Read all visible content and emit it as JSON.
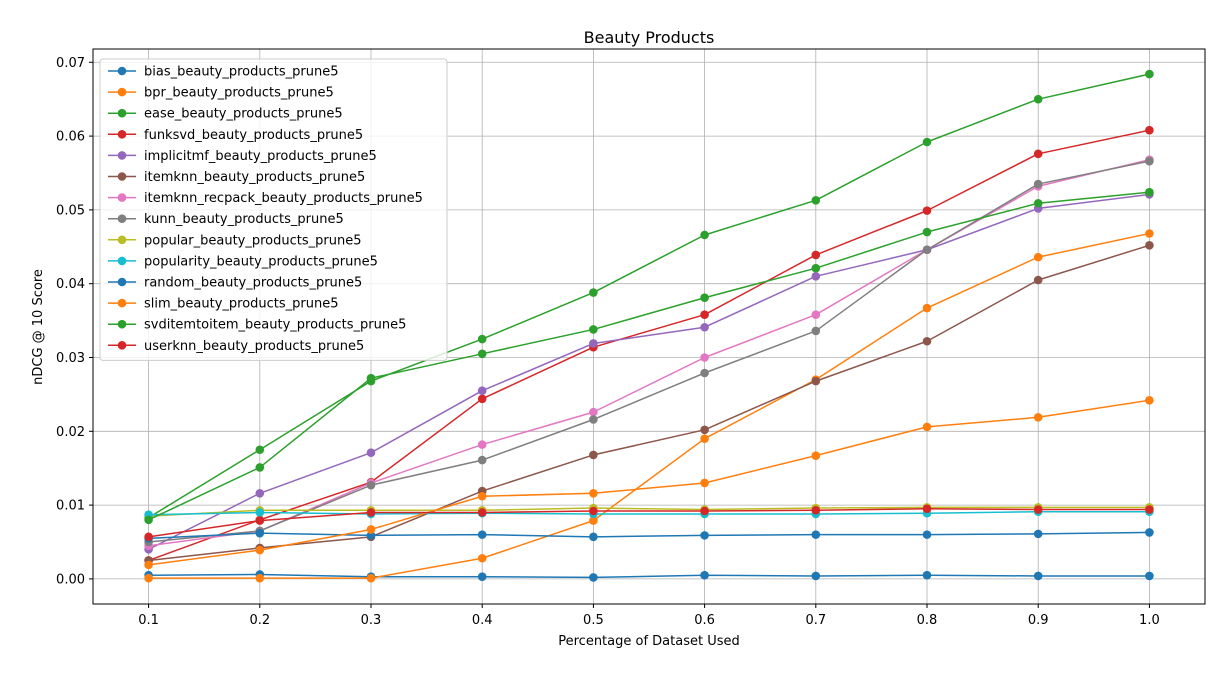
{
  "chart_data": {
    "type": "line",
    "title": "Beauty Products",
    "xlabel": "Percentage of Dataset Used",
    "ylabel": "nDCG @ 10 Score",
    "x": [
      0.1,
      0.2,
      0.3,
      0.4,
      0.5,
      0.6,
      0.7,
      0.8,
      0.9,
      1.0
    ],
    "xticks": [
      "0.1",
      "0.2",
      "0.3",
      "0.4",
      "0.5",
      "0.6",
      "0.7",
      "0.8",
      "0.9",
      "1.0"
    ],
    "yticks": [
      "0.00",
      "0.01",
      "0.02",
      "0.03",
      "0.04",
      "0.05",
      "0.06",
      "0.07"
    ],
    "xlim": [
      0.05,
      1.05
    ],
    "ylim": [
      -0.0034,
      0.0718
    ],
    "grid": true,
    "legend_position": "upper-left",
    "series": [
      {
        "name": "bias_beauty_products_prune5",
        "color": "#1f77b4",
        "values": [
          0.0005,
          0.0006,
          0.0003,
          0.0003,
          0.0002,
          0.0005,
          0.0004,
          0.0005,
          0.0004,
          0.0004
        ]
      },
      {
        "name": "bpr_beauty_products_prune5",
        "color": "#ff7f0e",
        "values": [
          0.0001,
          0.0001,
          0.0001,
          0.0028,
          0.0079,
          0.019,
          0.027,
          0.0367,
          0.0436,
          0.0468
        ]
      },
      {
        "name": "ease_beauty_products_prune5",
        "color": "#2ca02c",
        "values": [
          0.0083,
          0.0175,
          0.0268,
          0.0325,
          0.0388,
          0.0466,
          0.0513,
          0.0592,
          0.065,
          0.0684
        ]
      },
      {
        "name": "funksvd_beauty_products_prune5",
        "color": "#d62728",
        "values": [
          0.0025,
          0.008,
          0.0131,
          0.0244,
          0.0314,
          0.0358,
          0.0439,
          0.0499,
          0.0576,
          0.0608
        ]
      },
      {
        "name": "implicitmf_beauty_products_prune5",
        "color": "#9467bd",
        "values": [
          0.004,
          0.0116,
          0.0171,
          0.0255,
          0.0319,
          0.0341,
          0.041,
          0.0446,
          0.0502,
          0.0521
        ]
      },
      {
        "name": "itemknn_beauty_products_prune5",
        "color": "#8c564b",
        "values": [
          0.0025,
          0.0042,
          0.0057,
          0.0119,
          0.0168,
          0.0202,
          0.0268,
          0.0322,
          0.0405,
          0.0452
        ]
      },
      {
        "name": "itemknn_recpack_beauty_products_prune5",
        "color": "#e377c2",
        "values": [
          0.0045,
          0.0065,
          0.013,
          0.0182,
          0.0226,
          0.03,
          0.0358,
          0.0446,
          0.0532,
          0.0568
        ]
      },
      {
        "name": "kunn_beauty_products_prune5",
        "color": "#7f7f7f",
        "values": [
          0.005,
          0.0065,
          0.0127,
          0.0161,
          0.0216,
          0.0279,
          0.0336,
          0.0446,
          0.0535,
          0.0566
        ]
      },
      {
        "name": "popular_beauty_products_prune5",
        "color": "#bcbd22",
        "values": [
          0.0085,
          0.0093,
          0.0093,
          0.0093,
          0.0096,
          0.0094,
          0.0096,
          0.0097,
          0.0097,
          0.0097
        ]
      },
      {
        "name": "popularity_beauty_products_prune5",
        "color": "#17becf",
        "values": [
          0.0087,
          0.009,
          0.0088,
          0.0089,
          0.0088,
          0.0088,
          0.0088,
          0.0089,
          0.0091,
          0.0091
        ]
      },
      {
        "name": "random_beauty_products_prune5",
        "color": "#1f77b4",
        "values": [
          0.0055,
          0.0062,
          0.0059,
          0.006,
          0.0057,
          0.0059,
          0.006,
          0.006,
          0.0061,
          0.0063
        ]
      },
      {
        "name": "slim_beauty_products_prune5",
        "color": "#ff7f0e",
        "values": [
          0.0019,
          0.0039,
          0.0067,
          0.0112,
          0.0116,
          0.013,
          0.0167,
          0.0206,
          0.0219,
          0.0242
        ]
      },
      {
        "name": "svditemtoitem_beauty_products_prune5",
        "color": "#2ca02c",
        "values": [
          0.008,
          0.0151,
          0.0272,
          0.0305,
          0.0338,
          0.0381,
          0.0421,
          0.047,
          0.0509,
          0.0524
        ]
      },
      {
        "name": "userknn_beauty_products_prune5",
        "color": "#d62728",
        "values": [
          0.0057,
          0.0079,
          0.009,
          0.009,
          0.0092,
          0.0092,
          0.0093,
          0.0095,
          0.0094,
          0.0094
        ]
      }
    ]
  }
}
